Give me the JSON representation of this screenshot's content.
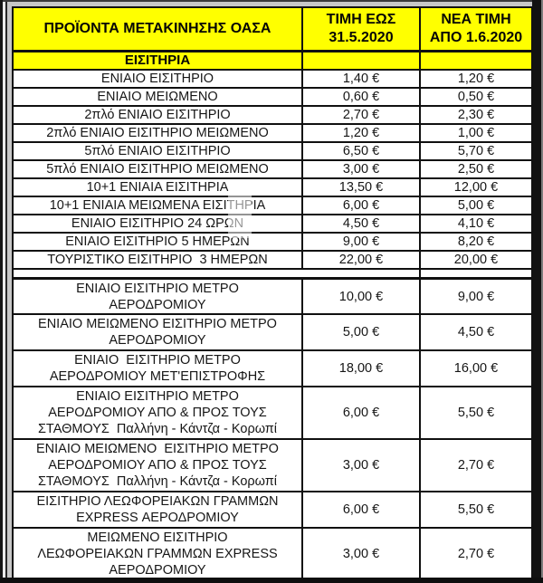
{
  "table": {
    "headers": {
      "product": "ΠΡΟΪΟΝΤΑ ΜΕΤΑΚΙΝΗΣΗΣ ΟΑΣΑ",
      "price_until": "ΤΙΜΗ ΕΩΣ\n31.5.2020",
      "price_new": "ΝΕΑ ΤΙΜΗ\nΑΠΟ 1.6.2020"
    },
    "section_title": "ΕΙΣΙΤΗΡΙΑ",
    "rows": [
      {
        "name": "ΕΝΙΑΙΟ ΕΙΣΙΤΗΡΙΟ",
        "old": "1,40 €",
        "new": "1,20 €"
      },
      {
        "name": "ΕΝΙΑΙΟ ΜΕΙΩΜΕΝΟ",
        "old": "0,60 €",
        "new": "0,50 €"
      },
      {
        "name": "2πλό ΕΝΙΑΙΟ ΕΙΣΙΤΗΡΙΟ",
        "old": "2,70 €",
        "new": "2,30 €"
      },
      {
        "name": "2πλό ΕΝΙΑΙΟ ΕΙΣΙΤΗΡΙΟ ΜΕΙΩΜΕΝΟ",
        "old": "1,20 €",
        "new": "1,00 €"
      },
      {
        "name": "5πλό ΕΝΙΑΙΟ ΕΙΣΙΤΗΡΙΟ",
        "old": "6,50 €",
        "new": "5,70 €"
      },
      {
        "name": "5πλό ΕΝΙΑΙΟ ΕΙΣΙΤΗΡΙΟ ΜΕΙΩΜΕΝΟ",
        "old": "3,00 €",
        "new": "2,50 €"
      },
      {
        "name": "10+1 ΕΝΙΑΙΑ ΕΙΣΙΤΗΡΙΑ",
        "old": "13,50 €",
        "new": "12,00 €"
      },
      {
        "name": "10+1 ΕΝΙΑΙΑ ΜΕΙΩΜΕΝΑ ΕΙΣΙΤΗΡΙΑ",
        "old": "6,00 €",
        "new": "5,00 €"
      },
      {
        "name": "ΕΝΙΑΙΟ ΕΙΣΙΤΗΡΙΟ 24 ΩΡΩΝ",
        "old": "4,50 €",
        "new": "4,10 €"
      },
      {
        "name": "ΕΝΙΑΙΟ ΕΙΣΙΤΗΡΙΟ 5 ΗΜΕΡΩΝ",
        "old": "9,00 €",
        "new": "8,20 €"
      },
      {
        "name": "ΤΟΥΡΙΣΤΙΚΟ ΕΙΣΙΤΗΡΙΟ  3 ΗΜΕΡΩΝ",
        "old": "22,00 €",
        "new": "20,00 €"
      },
      {
        "name": "ΕΝΙΑΙΟ ΕΙΣΙΤΗΡΙΟ ΜΕΤΡΟ\nΑΕΡΟΔΡΟΜΙΟΥ",
        "old": "10,00 €",
        "new": "9,00 €"
      },
      {
        "name": "ΕΝΙΑΙΟ ΜΕΙΩΜΕΝΟ ΕΙΣΙΤΗΡΙΟ ΜΕΤΡΟ\nΑΕΡΟΔΡΟΜΙΟΥ",
        "old": "5,00 €",
        "new": "4,50 €"
      },
      {
        "name": "ΕΝΙΑΙΟ  ΕΙΣΙΤΗΡΙΟ ΜΕΤΡΟ\nΑΕΡΟΔΡΟΜΙΟΥ ΜΕΤ'ΕΠΙΣΤΡΟΦΗΣ",
        "old": "18,00 €",
        "new": "16,00 €"
      },
      {
        "name": "ΕΝΙΑΙΟ ΕΙΣΙΤΗΡΙΟ ΜΕΤΡΟ\nΑΕΡΟΔΡΟΜΙΟΥ ΑΠΟ & ΠΡΟΣ ΤΟΥΣ\nΣΤΑΘΜΟΥΣ  Παλλήνη - Κάντζα - Κορωπί",
        "old": "6,00 €",
        "new": "5,50 €"
      },
      {
        "name": "ΕΝΙΑΙΟ ΜΕΙΩΜΕΝΟ  ΕΙΣΙΤΗΡΙΟ ΜΕΤΡΟ\nΑΕΡΟΔΡΟΜΙΟΥ ΑΠΟ & ΠΡΟΣ ΤΟΥΣ\nΣΤΑΘΜΟΥΣ  Παλλήνη - Κάντζα - Κορωπί",
        "old": "3,00 €",
        "new": "2,70 €"
      },
      {
        "name": "ΕΙΣΙΤΗΡΙΟ ΛΕΩΦΟΡΕΙΑΚΩΝ ΓΡΑΜΜΩΝ\nEXPRESS ΑΕΡΟΔΡΟΜΙΟΥ",
        "old": "6,00 €",
        "new": "5,50 €"
      },
      {
        "name": "ΜΕΙΩΜΕΝΟ ΕΙΣΙΤΗΡΙΟ\nΛΕΩΦΟΡΕΙΑΚΩΝ ΓΡΑΜΜΩΝ EXPRESS\nΑΕΡΟΔΡΟΜΙΟΥ",
        "old": "3,00 €",
        "new": "2,70 €"
      }
    ]
  },
  "colors": {
    "header_bg": "#FFFF00",
    "border": "#101010",
    "text": "#161616"
  }
}
